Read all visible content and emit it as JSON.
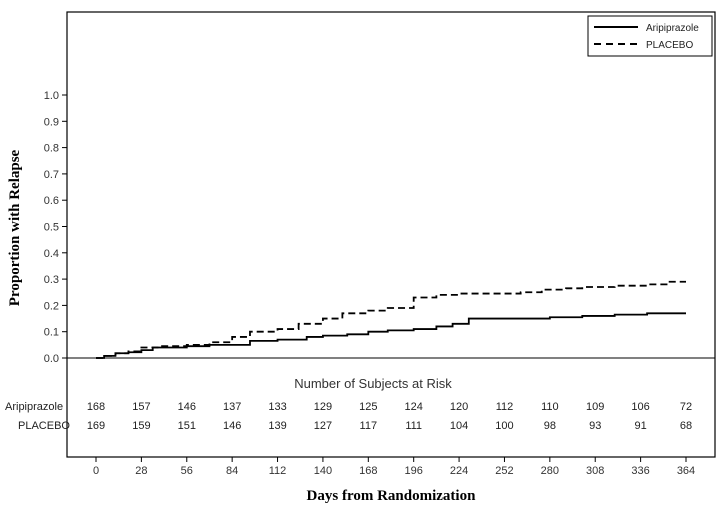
{
  "chart_data": {
    "type": "line",
    "title": "",
    "xlabel": "Days from Randomization",
    "ylabel": "Proportion with Relapse",
    "x_ticks": [
      0,
      28,
      56,
      84,
      112,
      140,
      168,
      196,
      224,
      252,
      280,
      308,
      336,
      364
    ],
    "y_ticks": [
      "0.0",
      "0.1",
      "0.2",
      "0.3",
      "0.4",
      "0.5",
      "0.6",
      "0.7",
      "0.8",
      "0.9",
      "1.0"
    ],
    "xlim": [
      0,
      364
    ],
    "ylim": [
      0,
      1.0
    ],
    "legend_position": "top-right",
    "series": [
      {
        "name": "Aripiprazole",
        "style": "solid",
        "color": "#000000",
        "points": [
          [
            0,
            0
          ],
          [
            5,
            0.008
          ],
          [
            12,
            0.018
          ],
          [
            20,
            0.022
          ],
          [
            28,
            0.03
          ],
          [
            35,
            0.04
          ],
          [
            56,
            0.045
          ],
          [
            70,
            0.05
          ],
          [
            84,
            0.05
          ],
          [
            95,
            0.065
          ],
          [
            112,
            0.07
          ],
          [
            130,
            0.08
          ],
          [
            140,
            0.085
          ],
          [
            155,
            0.09
          ],
          [
            168,
            0.1
          ],
          [
            180,
            0.105
          ],
          [
            196,
            0.11
          ],
          [
            210,
            0.12
          ],
          [
            220,
            0.13
          ],
          [
            230,
            0.15
          ],
          [
            240,
            0.15
          ],
          [
            260,
            0.15
          ],
          [
            280,
            0.155
          ],
          [
            300,
            0.16
          ],
          [
            320,
            0.165
          ],
          [
            340,
            0.17
          ],
          [
            364,
            0.17
          ]
        ]
      },
      {
        "name": "PLACEBO",
        "style": "dashed",
        "color": "#000000",
        "points": [
          [
            0,
            0
          ],
          [
            5,
            0.008
          ],
          [
            12,
            0.018
          ],
          [
            20,
            0.025
          ],
          [
            28,
            0.04
          ],
          [
            40,
            0.045
          ],
          [
            56,
            0.05
          ],
          [
            70,
            0.06
          ],
          [
            84,
            0.08
          ],
          [
            95,
            0.1
          ],
          [
            112,
            0.11
          ],
          [
            125,
            0.13
          ],
          [
            140,
            0.15
          ],
          [
            152,
            0.17
          ],
          [
            168,
            0.18
          ],
          [
            180,
            0.19
          ],
          [
            196,
            0.23
          ],
          [
            210,
            0.24
          ],
          [
            224,
            0.245
          ],
          [
            252,
            0.245
          ],
          [
            262,
            0.25
          ],
          [
            275,
            0.26
          ],
          [
            290,
            0.265
          ],
          [
            300,
            0.27
          ],
          [
            320,
            0.275
          ],
          [
            340,
            0.28
          ],
          [
            352,
            0.29
          ],
          [
            364,
            0.29
          ]
        ]
      }
    ],
    "risk_table": {
      "title": "Number of Subjects at Risk",
      "rows": [
        {
          "label": "Aripiprazole",
          "values": [
            "168",
            "157",
            "146",
            "137",
            "133",
            "129",
            "125",
            "124",
            "120",
            "112",
            "110",
            "109",
            "106",
            "72"
          ]
        },
        {
          "label": "PLACEBO",
          "values": [
            "169",
            "159",
            "151",
            "146",
            "139",
            "127",
            "117",
            "111",
            "104",
            "100",
            "98",
            "93",
            "91",
            "68"
          ]
        }
      ]
    }
  }
}
